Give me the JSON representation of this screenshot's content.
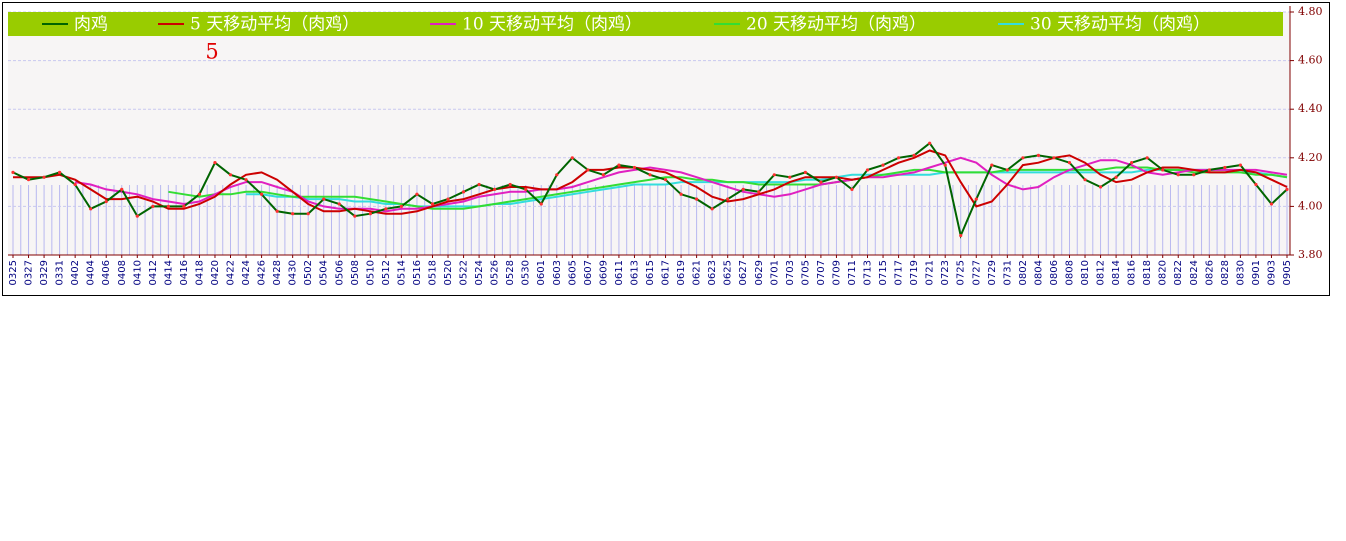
{
  "chart_data": {
    "type": "line",
    "annotation": "5",
    "categories": [
      "0325",
      "0327",
      "0329",
      "0331",
      "0402",
      "0404",
      "0406",
      "0408",
      "0410",
      "0412",
      "0414",
      "0416",
      "0418",
      "0420",
      "0422",
      "0424",
      "0426",
      "0428",
      "0430",
      "0502",
      "0504",
      "0506",
      "0508",
      "0510",
      "0512",
      "0514",
      "0516",
      "0518",
      "0520",
      "0522",
      "0524",
      "0526",
      "0528",
      "0530",
      "0601",
      "0603",
      "0605",
      "0607",
      "0609",
      "0611",
      "0613",
      "0615",
      "0617",
      "0619",
      "0621",
      "0623",
      "0625",
      "0627",
      "0629",
      "0701",
      "0703",
      "0705",
      "0707",
      "0709",
      "0711",
      "0713",
      "0715",
      "0717",
      "0719",
      "0721",
      "0723",
      "0725",
      "0727",
      "0729",
      "0731",
      "0802",
      "0804",
      "0806",
      "0808",
      "0810",
      "0812",
      "0814",
      "0816",
      "0818",
      "0820",
      "0822",
      "0824",
      "0826",
      "0828",
      "0830",
      "0901",
      "0903",
      "0905"
    ],
    "series": [
      {
        "name": "肉鸡",
        "color": "#006400",
        "markers": true,
        "values": [
          4.14,
          4.11,
          4.12,
          4.14,
          4.09,
          3.99,
          4.02,
          4.07,
          3.96,
          4.0,
          4.0,
          4.0,
          4.05,
          4.18,
          4.13,
          4.11,
          4.05,
          3.98,
          3.97,
          3.97,
          4.03,
          4.01,
          3.96,
          3.97,
          3.99,
          4.0,
          4.05,
          4.01,
          4.03,
          4.06,
          4.09,
          4.07,
          4.09,
          4.07,
          4.01,
          4.13,
          4.2,
          4.15,
          4.13,
          4.17,
          4.16,
          4.13,
          4.11,
          4.05,
          4.03,
          3.99,
          4.03,
          4.07,
          4.06,
          4.13,
          4.12,
          4.14,
          4.1,
          4.12,
          4.07,
          4.15,
          4.17,
          4.2,
          4.21,
          4.26,
          4.17,
          3.88,
          4.03,
          4.17,
          4.15,
          4.2,
          4.21,
          4.2,
          4.18,
          4.11,
          4.08,
          4.12,
          4.18,
          4.2,
          4.15,
          4.13,
          4.13,
          4.15,
          4.16,
          4.17,
          4.09,
          4.01,
          4.07
        ]
      },
      {
        "name": "5 天移动平均（肉鸡）",
        "color": "#cc0000",
        "values": [
          4.12,
          4.12,
          4.12,
          4.13,
          4.11,
          4.07,
          4.03,
          4.03,
          4.04,
          4.02,
          3.99,
          3.99,
          4.01,
          4.04,
          4.09,
          4.13,
          4.14,
          4.11,
          4.06,
          4.01,
          3.98,
          3.98,
          3.99,
          3.98,
          3.97,
          3.97,
          3.98,
          4.0,
          4.02,
          4.03,
          4.05,
          4.07,
          4.08,
          4.08,
          4.07,
          4.07,
          4.1,
          4.15,
          4.15,
          4.16,
          4.16,
          4.15,
          4.14,
          4.11,
          4.08,
          4.04,
          4.02,
          4.03,
          4.05,
          4.07,
          4.1,
          4.12,
          4.12,
          4.12,
          4.11,
          4.12,
          4.15,
          4.18,
          4.2,
          4.23,
          4.21,
          4.1,
          4.0,
          4.02,
          4.09,
          4.17,
          4.18,
          4.2,
          4.21,
          4.18,
          4.13,
          4.1,
          4.11,
          4.14,
          4.16,
          4.16,
          4.15,
          4.14,
          4.14,
          4.15,
          4.14,
          4.11,
          4.08
        ]
      },
      {
        "name": "10 天移动平均（肉鸡）",
        "color": "#e020c0",
        "values": [
          null,
          null,
          null,
          null,
          4.1,
          4.09,
          4.07,
          4.06,
          4.05,
          4.03,
          4.02,
          4.01,
          4.02,
          4.05,
          4.08,
          4.1,
          4.1,
          4.08,
          4.06,
          4.02,
          4.0,
          3.99,
          3.99,
          3.99,
          3.98,
          3.99,
          3.99,
          4.0,
          4.01,
          4.02,
          4.04,
          4.05,
          4.06,
          4.06,
          4.07,
          4.07,
          4.08,
          4.1,
          4.12,
          4.14,
          4.15,
          4.16,
          4.15,
          4.14,
          4.12,
          4.1,
          4.08,
          4.06,
          4.05,
          4.04,
          4.05,
          4.07,
          4.09,
          4.1,
          4.11,
          4.12,
          4.12,
          4.13,
          4.14,
          4.16,
          4.18,
          4.2,
          4.18,
          4.13,
          4.09,
          4.07,
          4.08,
          4.12,
          4.15,
          4.17,
          4.19,
          4.19,
          4.17,
          4.14,
          4.13,
          4.14,
          4.15,
          4.15,
          4.15,
          4.15,
          4.15,
          4.14,
          4.13
        ]
      },
      {
        "name": "20 天移动平均（肉鸡）",
        "color": "#33dd33",
        "values": [
          null,
          null,
          null,
          null,
          null,
          null,
          null,
          null,
          null,
          null,
          4.06,
          4.05,
          4.04,
          4.05,
          4.05,
          4.06,
          4.06,
          4.05,
          4.04,
          4.04,
          4.04,
          4.04,
          4.04,
          4.03,
          4.02,
          4.01,
          4.0,
          3.99,
          3.99,
          3.99,
          4.0,
          4.01,
          4.02,
          4.03,
          4.04,
          4.05,
          4.06,
          4.07,
          4.08,
          4.09,
          4.1,
          4.11,
          4.12,
          4.12,
          4.11,
          4.11,
          4.1,
          4.1,
          4.09,
          4.09,
          4.09,
          4.09,
          4.09,
          4.1,
          4.11,
          4.12,
          4.13,
          4.14,
          4.15,
          4.15,
          4.14,
          4.14,
          4.14,
          4.14,
          4.15,
          4.15,
          4.15,
          4.15,
          4.15,
          4.15,
          4.15,
          4.16,
          4.16,
          4.16,
          4.15,
          4.15,
          4.14,
          4.14,
          4.14,
          4.14,
          4.13,
          4.13,
          4.12
        ]
      },
      {
        "name": "30 天移动平均（肉鸡）",
        "color": "#33dddd",
        "values": [
          null,
          null,
          null,
          null,
          null,
          null,
          null,
          null,
          null,
          null,
          null,
          null,
          null,
          null,
          null,
          4.05,
          4.05,
          4.04,
          4.04,
          4.03,
          4.03,
          4.03,
          4.02,
          4.02,
          4.01,
          4.01,
          4.0,
          4.0,
          4.0,
          4.0,
          4.0,
          4.01,
          4.01,
          4.02,
          4.03,
          4.04,
          4.05,
          4.06,
          4.07,
          4.08,
          4.09,
          4.09,
          4.09,
          4.1,
          4.1,
          4.1,
          4.1,
          4.1,
          4.1,
          4.1,
          4.1,
          4.11,
          4.11,
          4.12,
          4.13,
          4.13,
          4.13,
          4.13,
          4.13,
          4.13,
          4.14,
          4.14,
          4.14,
          4.14,
          4.14,
          4.14,
          4.14,
          4.14,
          4.14,
          4.14,
          4.14,
          4.14,
          4.14,
          4.15,
          4.15,
          4.15,
          4.15,
          4.15,
          4.15,
          4.14,
          4.14,
          4.13,
          4.12
        ]
      }
    ],
    "ylim": [
      3.8,
      4.8
    ],
    "yticks": [
      {
        "value": 3.8,
        "label": "3.80"
      },
      {
        "value": 4.0,
        "label": "4.00"
      },
      {
        "value": 4.2,
        "label": "4.20"
      },
      {
        "value": 4.4,
        "label": "4.40"
      },
      {
        "value": 4.6,
        "label": "4.60"
      },
      {
        "value": 4.8,
        "label": "4.80"
      }
    ],
    "grid": true,
    "legend": "top",
    "legend_color": "#99cc00"
  }
}
